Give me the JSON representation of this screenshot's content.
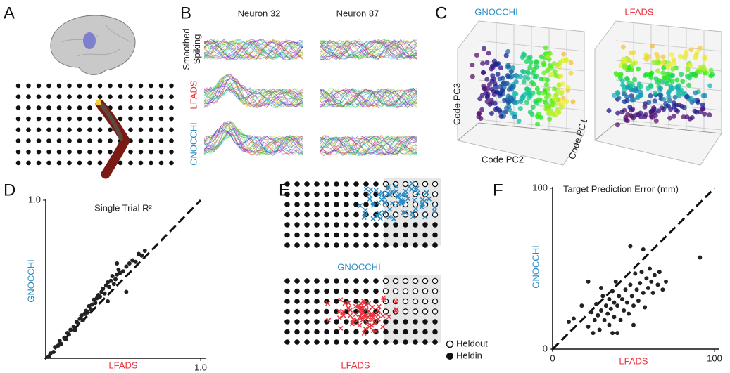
{
  "panel_labels": [
    "A",
    "B",
    "C",
    "D",
    "E",
    "F"
  ],
  "panel_b": {
    "columns": [
      "Neuron 32",
      "Neuron 87"
    ],
    "rows": [
      "Smoothed Spiking",
      "LFADS",
      "GNOCCHI"
    ]
  },
  "panel_c": {
    "titles": [
      "GNOCCHI",
      "LFADS"
    ],
    "axis_labels": [
      "Code PC3",
      "Code PC2",
      "Code PC1"
    ]
  },
  "panel_e": {
    "titles": [
      "GNOCCHI",
      "LFADS"
    ],
    "legend": [
      "Heldout",
      "Heldin"
    ]
  },
  "chart_data": [
    {
      "type": "scatter",
      "title": "Single Trial R²",
      "x_label": "LFADS",
      "y_label": "GNOCCHI",
      "x_label_color": "#e8333c",
      "y_label_color": "#2b8cc4",
      "color": "#222",
      "x": [
        0.02,
        0.03,
        0.05,
        0.06,
        0.08,
        0.09,
        0.1,
        0.12,
        0.13,
        0.14,
        0.15,
        0.16,
        0.18,
        0.19,
        0.2,
        0.21,
        0.22,
        0.23,
        0.24,
        0.25,
        0.26,
        0.27,
        0.28,
        0.29,
        0.3,
        0.31,
        0.32,
        0.33,
        0.34,
        0.35,
        0.36,
        0.37,
        0.38,
        0.39,
        0.4,
        0.41,
        0.42,
        0.43,
        0.44,
        0.45,
        0.46,
        0.47,
        0.48,
        0.5,
        0.52,
        0.54,
        0.56,
        0.58,
        0.6,
        0.62,
        0.64,
        0.52,
        0.46,
        0.4
      ],
      "values": [
        0.01,
        0.03,
        0.04,
        0.07,
        0.08,
        0.11,
        0.09,
        0.13,
        0.12,
        0.16,
        0.15,
        0.18,
        0.2,
        0.18,
        0.23,
        0.22,
        0.25,
        0.27,
        0.24,
        0.28,
        0.3,
        0.29,
        0.33,
        0.31,
        0.34,
        0.37,
        0.35,
        0.38,
        0.4,
        0.39,
        0.42,
        0.44,
        0.41,
        0.46,
        0.48,
        0.45,
        0.49,
        0.52,
        0.47,
        0.5,
        0.53,
        0.56,
        0.54,
        0.55,
        0.58,
        0.6,
        0.62,
        0.61,
        0.66,
        0.65,
        0.68,
        0.42,
        0.6,
        0.36
      ],
      "xlim": [
        0,
        1
      ],
      "ylim": [
        0,
        1
      ],
      "xticks": [
        {
          "value": 1,
          "label": "1.0"
        }
      ],
      "yticks": [
        {
          "value": 1,
          "label": "1.0"
        }
      ]
    },
    {
      "type": "scatter",
      "title": "Target Prediction Error (mm)",
      "x_label": "LFADS",
      "y_label": "GNOCCHI",
      "x_label_color": "#e8333c",
      "y_label_color": "#2b8cc4",
      "color": "#222",
      "x": [
        10,
        13,
        18,
        22,
        24,
        25,
        26,
        27,
        28,
        29,
        30,
        30,
        31,
        32,
        33,
        34,
        35,
        35,
        36,
        37,
        37,
        38,
        38,
        39,
        40,
        41,
        42,
        43,
        44,
        45,
        46,
        47,
        48,
        49,
        50,
        50,
        51,
        52,
        53,
        54,
        55,
        56,
        57,
        58,
        59,
        60,
        61,
        62,
        63,
        65,
        66,
        68,
        70,
        48,
        56,
        91,
        22,
        40
      ],
      "values": [
        17,
        19,
        27,
        14,
        23,
        10,
        18,
        28,
        21,
        12,
        24,
        38,
        33,
        18,
        27,
        22,
        15,
        31,
        25,
        10,
        36,
        20,
        29,
        42,
        27,
        33,
        18,
        31,
        24,
        37,
        29,
        22,
        40,
        33,
        15,
        27,
        47,
        37,
        30,
        41,
        48,
        35,
        26,
        44,
        38,
        50,
        42,
        35,
        46,
        40,
        48,
        37,
        42,
        64,
        62,
        57,
        42,
        10
      ],
      "xlim": [
        0,
        100
      ],
      "ylim": [
        0,
        100
      ],
      "xticks": [
        0,
        100
      ],
      "yticks": [
        0,
        100
      ]
    }
  ]
}
